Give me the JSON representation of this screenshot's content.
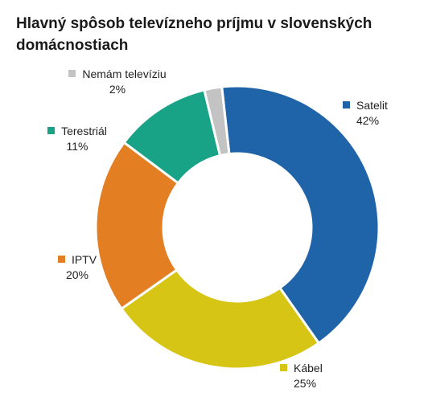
{
  "chart_data": {
    "type": "pie",
    "title": "Hlavný spôsob televízneho príjmu v slovenských domácnostiach",
    "donut": true,
    "categories": [
      "Satelit",
      "Kábel",
      "IPTV",
      "Terestriál",
      "Nemám televíziu"
    ],
    "values": [
      42,
      25,
      20,
      11,
      2
    ],
    "value_labels": [
      "42%",
      "25%",
      "20%",
      "11%",
      "2%"
    ],
    "colors": [
      "#1f63a8",
      "#d7c515",
      "#e37f22",
      "#19a386",
      "#c3c3c3"
    ],
    "legend": "data labels beside slices"
  }
}
